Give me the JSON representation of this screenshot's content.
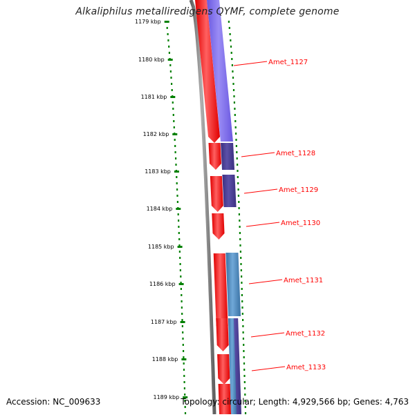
{
  "title": "Alkaliphilus metalliredigens QYMF, complete genome",
  "footer": {
    "accession": "Accession: NC_009633",
    "summary": "Topology: circular; Length: 4,929,566 bp; Genes: 4,763"
  },
  "ticks": [
    "1179 kbp",
    "1180 kbp",
    "1181 kbp",
    "1182 kbp",
    "1183 kbp",
    "1184 kbp",
    "1185 kbp",
    "1186 kbp",
    "1187 kbp",
    "1188 kbp",
    "1189 kbp"
  ],
  "genes": [
    "Amet_1127",
    "Amet_1128",
    "Amet_1129",
    "Amet_1130",
    "Amet_1131",
    "Amet_1132",
    "Amet_1133"
  ],
  "colors": {
    "cds": "#ff0000",
    "purple": "#7b68ee",
    "dark_purple": "#483d8b",
    "steel": "#4682b4",
    "backbone": "#808080",
    "ticks": "#008000",
    "label": "#ff0000"
  }
}
